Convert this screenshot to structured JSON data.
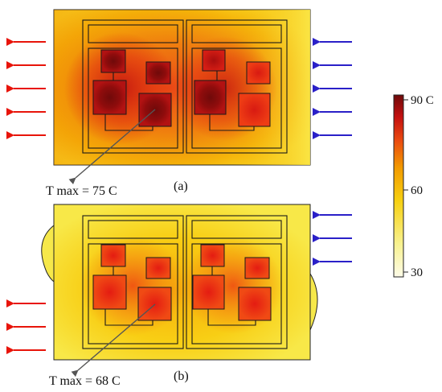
{
  "panels": [
    {
      "label": "(a)",
      "annotation": "T max = 75 C",
      "max_temp_c": 75,
      "left_arrows": 5,
      "right_arrows": 5
    },
    {
      "label": "(b)",
      "annotation": "T max = 68 C",
      "max_temp_c": 68,
      "left_arrows": 3,
      "right_arrows": 3
    }
  ],
  "colorbar": {
    "max_label": "90 C",
    "mid_label": "60",
    "min_label": "30",
    "colors": [
      "#fdfbe8",
      "#f8f05a",
      "#f7c600",
      "#f08a00",
      "#e83a10",
      "#c01010",
      "#6e0a0a"
    ]
  },
  "arrow_colors": {
    "outflow": "#e8140a",
    "inflow": "#2a20c8"
  }
}
